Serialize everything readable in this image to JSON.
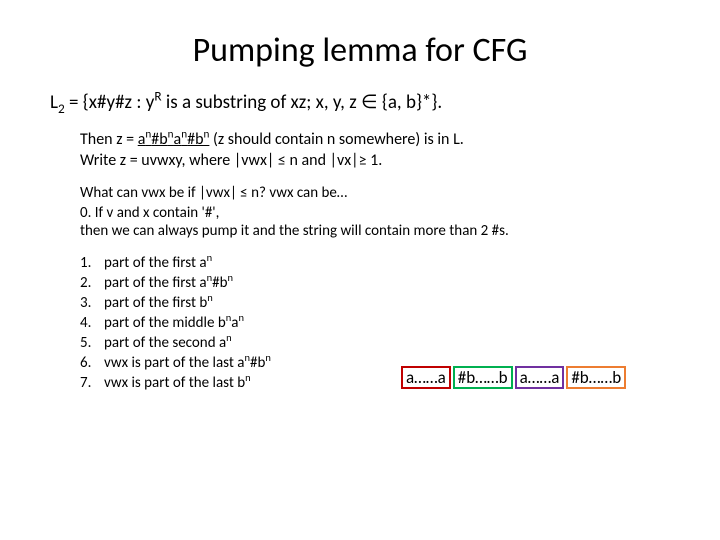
{
  "title": "Pumping lemma for CFG",
  "main_line": {
    "prefix": "L",
    "sub": "2",
    "mid": " = {x#y#z : y",
    "sup1": "R",
    "rest": " is a substring of xz; x, y, z ∈ {a, b}*}."
  },
  "sub_line1": {
    "pre": "Then z = ",
    "u1": "a",
    "u1s": "n",
    "u2": "#b",
    "u2s": "n",
    "u3": "a",
    "u3s": "n",
    "u4": "#b",
    "u4s": "n",
    "after": "  (z should contain n somewhere) is in L."
  },
  "sub_line2": "Write z = uvwxy, where |vwx| ≤ n and |vx|≥ 1.",
  "q_line": "What can vwx be if |vwx| ≤ n? vwx can be…",
  "zero_a": "0.   If v and x  contain '#',",
  "zero_b": "       then we can always pump it and the string will contain more than 2 #s.",
  "items": [
    {
      "n": "1.",
      "t_pre": "part of the first a",
      "t_sup": "n",
      "t_post": ""
    },
    {
      "n": "2.",
      "t_pre": "part of the first a",
      "t_sup": "n",
      "t_mid": "#b",
      "t_sup2": "n",
      "t_post": ""
    },
    {
      "n": "3.",
      "t_pre": "part of the first b",
      "t_sup": "n",
      "t_post": ""
    },
    {
      "n": "4.",
      "t_pre": "part of the middle b",
      "t_sup": "n",
      "t_mid": "a",
      "t_sup2": "n",
      "t_post": ""
    },
    {
      "n": "5.",
      "t_pre": "part of the second a",
      "t_sup": "n",
      "t_post": ""
    },
    {
      "n": "6.",
      "t_pre": "vwx is part of the last a",
      "t_sup": "n",
      "t_mid": "#b",
      "t_sup2": "n",
      "t_post": ""
    },
    {
      "n": "7.",
      "t_pre": "vwx is part of the last b",
      "t_sup": "n",
      "t_post": ""
    }
  ],
  "boxes": {
    "b1": "a……a",
    "b2": "#b……b",
    "b3": "a……a",
    "b4": "#b……b",
    "colors": {
      "red": "#c00000",
      "green": "#00b050",
      "purple": "#7030a0",
      "blue": "#0070c0",
      "orange": "#ed7d31"
    }
  }
}
